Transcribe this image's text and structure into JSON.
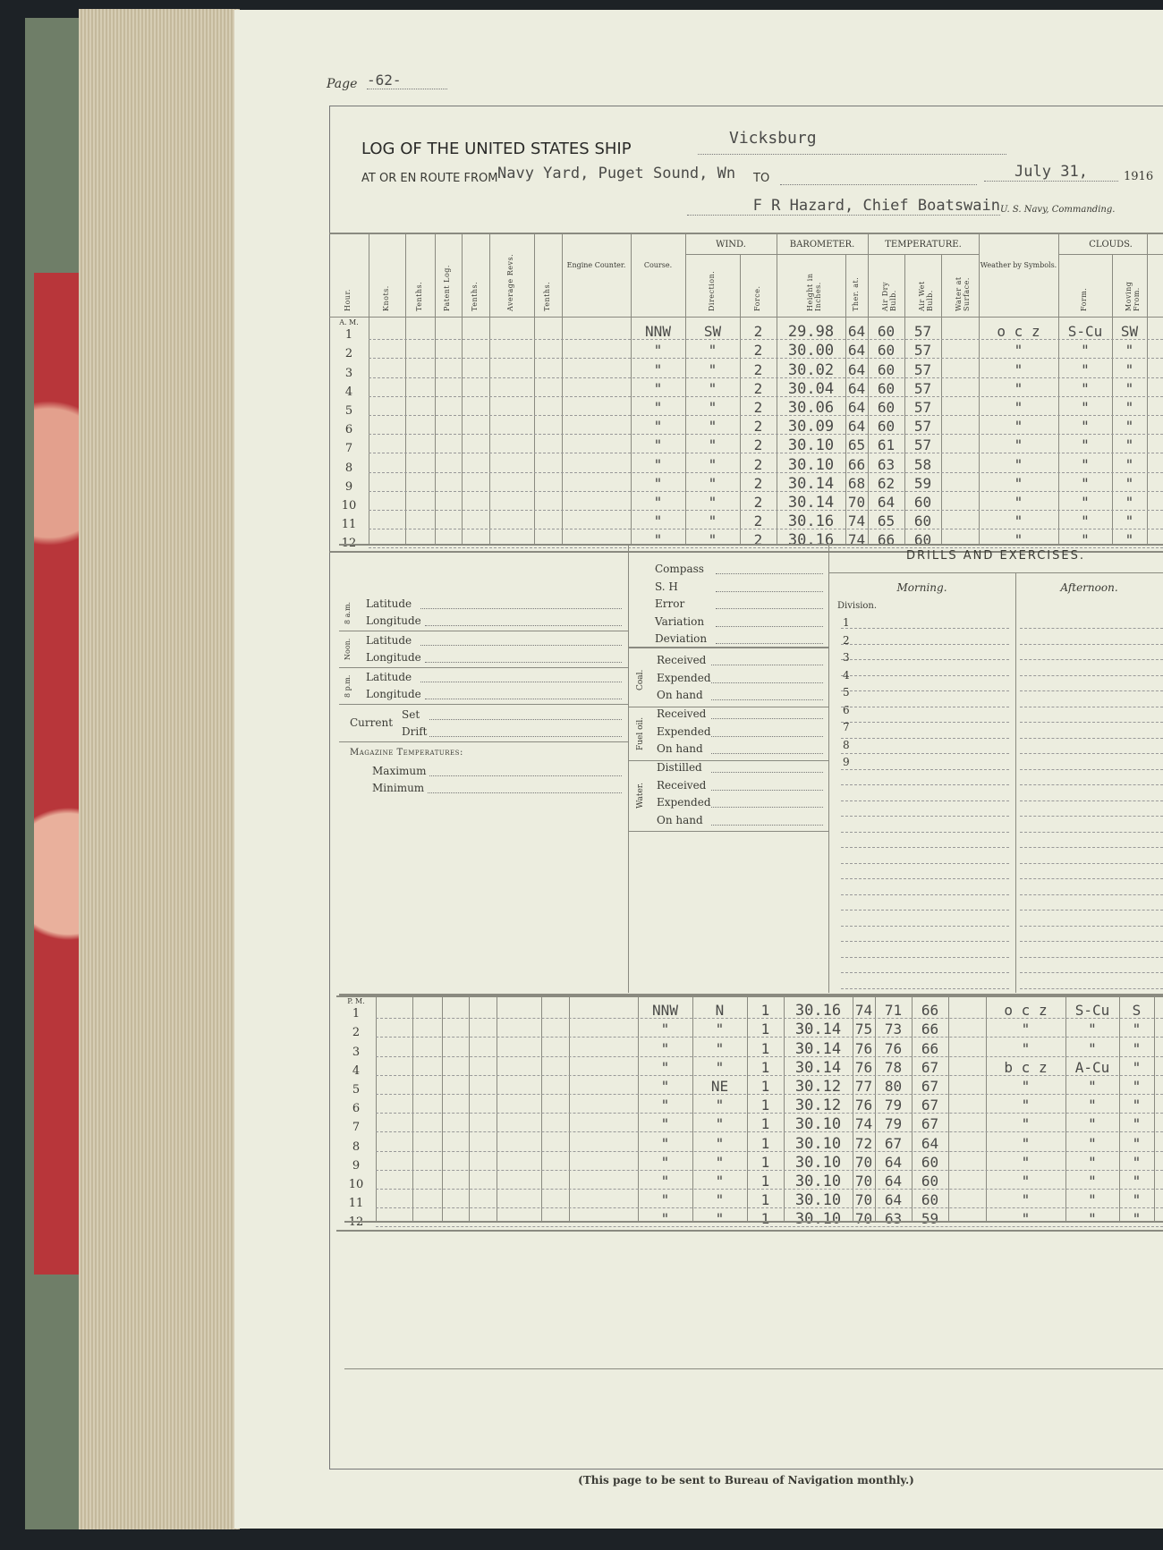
{
  "page": {
    "label": "Page",
    "number": "-62-"
  },
  "header": {
    "title": "LOG OF THE UNITED STATES SHIP",
    "ship": "Vicksburg",
    "route_label": "At or en route from",
    "route": "Navy Yard, Puget Sound, Wn",
    "to_label": "to",
    "date": "July 31,",
    "year": "1916",
    "commanding": "F R Hazard, Chief Boatswain",
    "commanding_suffix": "U. S. Navy, Commanding."
  },
  "table": {
    "group_headers": {
      "wind": "WIND.",
      "barometer": "BAROMETER.",
      "temperature": "TEMPERATURE.",
      "clouds": "CLOUDS."
    },
    "columns": [
      "Hour.",
      "Knots.",
      "Tenths.",
      "Patent Log.",
      "Tenths.",
      "Average Revs.",
      "Tenths.",
      "Engine Counter.",
      "Course.",
      "Direction.",
      "Force.",
      "Height in Inches.",
      "Ther. at.",
      "Air Dry Bulb.",
      "Air Wet Bulb.",
      "Water at Surface.",
      "Weather by Symbols.",
      "Form.",
      "Moving From."
    ],
    "am_label": "A. M.",
    "pm_label": "P. M.",
    "am_rows": [
      [
        "NNW",
        "SW",
        "2",
        "29.98",
        "64",
        "60",
        "57",
        "o c z",
        "S-Cu",
        "SW"
      ],
      [
        "\"",
        "\"",
        "2",
        "30.00",
        "64",
        "60",
        "57",
        "\"",
        "\"",
        "\""
      ],
      [
        "\"",
        "\"",
        "2",
        "30.02",
        "64",
        "60",
        "57",
        "\"",
        "\"",
        "\""
      ],
      [
        "\"",
        "\"",
        "2",
        "30.04",
        "64",
        "60",
        "57",
        "\"",
        "\"",
        "\""
      ],
      [
        "\"",
        "\"",
        "2",
        "30.06",
        "64",
        "60",
        "57",
        "\"",
        "\"",
        "\""
      ],
      [
        "\"",
        "\"",
        "2",
        "30.09",
        "64",
        "60",
        "57",
        "\"",
        "\"",
        "\""
      ],
      [
        "\"",
        "\"",
        "2",
        "30.10",
        "65",
        "61",
        "57",
        "\"",
        "\"",
        "\""
      ],
      [
        "\"",
        "\"",
        "2",
        "30.10",
        "66",
        "63",
        "58",
        "\"",
        "\"",
        "\""
      ],
      [
        "\"",
        "\"",
        "2",
        "30.14",
        "68",
        "62",
        "59",
        "\"",
        "\"",
        "\""
      ],
      [
        "\"",
        "\"",
        "2",
        "30.14",
        "70",
        "64",
        "60",
        "\"",
        "\"",
        "\""
      ],
      [
        "\"",
        "\"",
        "2",
        "30.16",
        "74",
        "65",
        "60",
        "\"",
        "\"",
        "\""
      ],
      [
        "\"",
        "\"",
        "2",
        "30.16",
        "74",
        "66",
        "60",
        "\"",
        "\"",
        "\""
      ]
    ],
    "pm_rows": [
      [
        "NNW",
        "N",
        "1",
        "30.16",
        "74",
        "71",
        "66",
        "o c z",
        "S-Cu",
        "S"
      ],
      [
        "\"",
        "\"",
        "1",
        "30.14",
        "75",
        "73",
        "66",
        "\"",
        "\"",
        "\""
      ],
      [
        "\"",
        "\"",
        "1",
        "30.14",
        "76",
        "76",
        "66",
        "\"",
        "\"",
        "\""
      ],
      [
        "\"",
        "\"",
        "1",
        "30.14",
        "76",
        "78",
        "67",
        "b c z",
        "A-Cu",
        "\""
      ],
      [
        "\"",
        "NE",
        "1",
        "30.12",
        "77",
        "80",
        "67",
        "\"",
        "\"",
        "\""
      ],
      [
        "\"",
        "\"",
        "1",
        "30.12",
        "76",
        "79",
        "67",
        "\"",
        "\"",
        "\""
      ],
      [
        "\"",
        "\"",
        "1",
        "30.10",
        "74",
        "79",
        "67",
        "\"",
        "\"",
        "\""
      ],
      [
        "\"",
        "\"",
        "1",
        "30.10",
        "72",
        "67",
        "64",
        "\"",
        "\"",
        "\""
      ],
      [
        "\"",
        "\"",
        "1",
        "30.10",
        "70",
        "64",
        "60",
        "\"",
        "\"",
        "\""
      ],
      [
        "\"",
        "\"",
        "1",
        "30.10",
        "70",
        "64",
        "60",
        "\"",
        "\"",
        "\""
      ],
      [
        "\"",
        "\"",
        "1",
        "30.10",
        "70",
        "64",
        "60",
        "\"",
        "\"",
        "\""
      ],
      [
        "\"",
        "\"",
        "1",
        "30.10",
        "70",
        "63",
        "59",
        "\"",
        "\"",
        "\""
      ]
    ]
  },
  "position": {
    "groups": [
      {
        "label": "8 a.m."
      },
      {
        "label": "Noon."
      },
      {
        "label": "8 p.m."
      }
    ],
    "latitude": "Latitude",
    "longitude": "Longitude",
    "current": "Current",
    "set": "Set",
    "drift": "Drift",
    "magazine": "Magazine Temperatures:",
    "maximum": "Maximum",
    "minimum": "Minimum"
  },
  "compass": {
    "items": [
      "Compass",
      "S. H",
      "Error",
      "Variation",
      "Deviation"
    ]
  },
  "coal": {
    "label": "Coal.",
    "items": [
      "Received",
      "Expended",
      "On hand"
    ]
  },
  "fuel": {
    "label": "Fuel oil.",
    "items": [
      "Received",
      "Expended",
      "On hand"
    ]
  },
  "water": {
    "label": "Water.",
    "items": [
      "Distilled",
      "Received",
      "Expended",
      "On hand"
    ]
  },
  "drills": {
    "title": "DRILLS AND EXERCISES.",
    "morning": "Morning.",
    "afternoon": "Afternoon.",
    "division": "Division.",
    "numbers": [
      "1",
      "2",
      "3",
      "4",
      "5",
      "6",
      "7",
      "8",
      "9"
    ]
  },
  "footer": "(This page to be sent to Bureau of Navigation monthly.)"
}
